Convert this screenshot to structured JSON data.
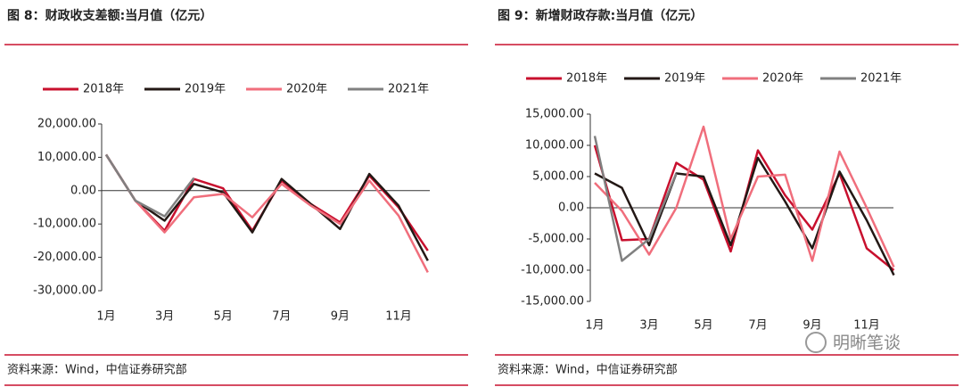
{
  "chart_data": [
    {
      "type": "line",
      "title": "图 8：财政收支差额:当月值（亿元）",
      "categories": [
        "1月",
        null,
        "3月",
        null,
        "5月",
        null,
        "7月",
        null,
        "9月",
        null,
        "11月",
        null
      ],
      "series": [
        {
          "name": "2018年",
          "color": "#c8102e",
          "values": [
            10800,
            -3000,
            -12000,
            3500,
            700,
            -12000,
            3000,
            -4000,
            -9500,
            4500,
            -5000,
            -18000
          ]
        },
        {
          "name": "2019年",
          "color": "#231815",
          "values": [
            10800,
            -3000,
            -9000,
            2000,
            -500,
            -12500,
            3500,
            -4000,
            -11500,
            5000,
            -4500,
            -21000
          ]
        },
        {
          "name": "2020年",
          "color": "#f06e7c",
          "values": [
            10800,
            -3000,
            -12500,
            -2000,
            -1000,
            -8000,
            2000,
            -4500,
            -10000,
            3000,
            -7500,
            -24500
          ]
        },
        {
          "name": "2021年",
          "color": "#808080",
          "values": [
            10800,
            -3000,
            -7700,
            3800,
            null,
            null,
            null,
            null,
            null,
            null,
            null,
            null
          ]
        }
      ],
      "ylim": [
        -30000,
        20000
      ],
      "yticks": [
        {
          "value": -30000,
          "label": "-30,000.00"
        },
        {
          "value": -20000,
          "label": "-20,000.00"
        },
        {
          "value": -10000,
          "label": "-10,000.00"
        },
        {
          "value": 0,
          "label": "0.00"
        },
        {
          "value": 10000,
          "label": "10,000.00"
        },
        {
          "value": 20000,
          "label": "20,000.00"
        }
      ],
      "source": "资料来源：Wind，中信证券研究部"
    },
    {
      "type": "line",
      "title": "图 9：新增财政存款:当月值（亿元）",
      "categories": [
        "1月",
        null,
        "3月",
        null,
        "5月",
        null,
        "7月",
        null,
        "9月",
        null,
        "11月",
        null
      ],
      "series": [
        {
          "name": "2018年",
          "color": "#c8102e",
          "values": [
            10000,
            -5200,
            -5000,
            7200,
            4500,
            -7000,
            9200,
            2000,
            -3500,
            5500,
            -6500,
            -10000
          ]
        },
        {
          "name": "2019年",
          "color": "#231815",
          "values": [
            5500,
            3200,
            -6000,
            5500,
            5000,
            -6000,
            8000,
            1000,
            -6500,
            5800,
            -2000,
            -10800
          ]
        },
        {
          "name": "2020年",
          "color": "#f06e7c",
          "values": [
            4000,
            -500,
            -7500,
            0,
            13000,
            -5000,
            5000,
            5300,
            -8500,
            9000,
            0,
            -9500
          ]
        },
        {
          "name": "2021年",
          "color": "#808080",
          "values": [
            11500,
            -8500,
            -5000,
            5500,
            null,
            null,
            null,
            null,
            null,
            null,
            null,
            null
          ]
        }
      ],
      "ylim": [
        -15000,
        15000
      ],
      "yticks": [
        {
          "value": -15000,
          "label": "-15,000.00"
        },
        {
          "value": -10000,
          "label": "-10,000.00"
        },
        {
          "value": -5000,
          "label": "-5,000.00"
        },
        {
          "value": 0,
          "label": "0.00"
        },
        {
          "value": 5000,
          "label": "5,000.00"
        },
        {
          "value": 10000,
          "label": "10,000.00"
        },
        {
          "value": 15000,
          "label": "15,000.00"
        }
      ],
      "source": "资料来源：Wind，中信证券研究部"
    }
  ],
  "watermark": "明晰笔谈"
}
